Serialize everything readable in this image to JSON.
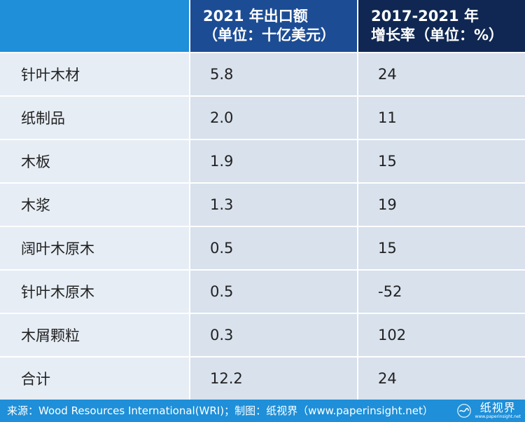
{
  "header": {
    "col1": "",
    "col2_line1": "2021 年出口额",
    "col2_line2": "（单位：十亿美元）",
    "col3_line1": "2017-2021 年",
    "col3_line2": "增长率（单位：%）"
  },
  "rows": [
    {
      "name": "针叶木材",
      "export": "5.8",
      "growth": "24"
    },
    {
      "name": "纸制品",
      "export": "2.0",
      "growth": "11"
    },
    {
      "name": "木板",
      "export": "1.9",
      "growth": "15"
    },
    {
      "name": "木浆",
      "export": "1.3",
      "growth": "19"
    },
    {
      "name": "阔叶木原木",
      "export": "0.5",
      "growth": "15"
    },
    {
      "name": "针叶木原木",
      "export": "0.5",
      "growth": "-52"
    },
    {
      "name": "木屑颗粒",
      "export": "0.3",
      "growth": "102"
    },
    {
      "name": "合计",
      "export": "12.2",
      "growth": "24"
    }
  ],
  "source": "来源：Wood Resources International(WRI)；制图：纸视界（www.paperinsight.net）",
  "logo": {
    "name": "纸视界",
    "url": "www.paperinsight.net",
    "icon": "paper-wave-icon"
  },
  "colors": {
    "header_light": "#1e8fd8",
    "header_mid": "#1c4c94",
    "header_dark": "#0f2752",
    "row_name_bg": "#e6edf5",
    "row_value_bg": "#d8e1ec"
  }
}
